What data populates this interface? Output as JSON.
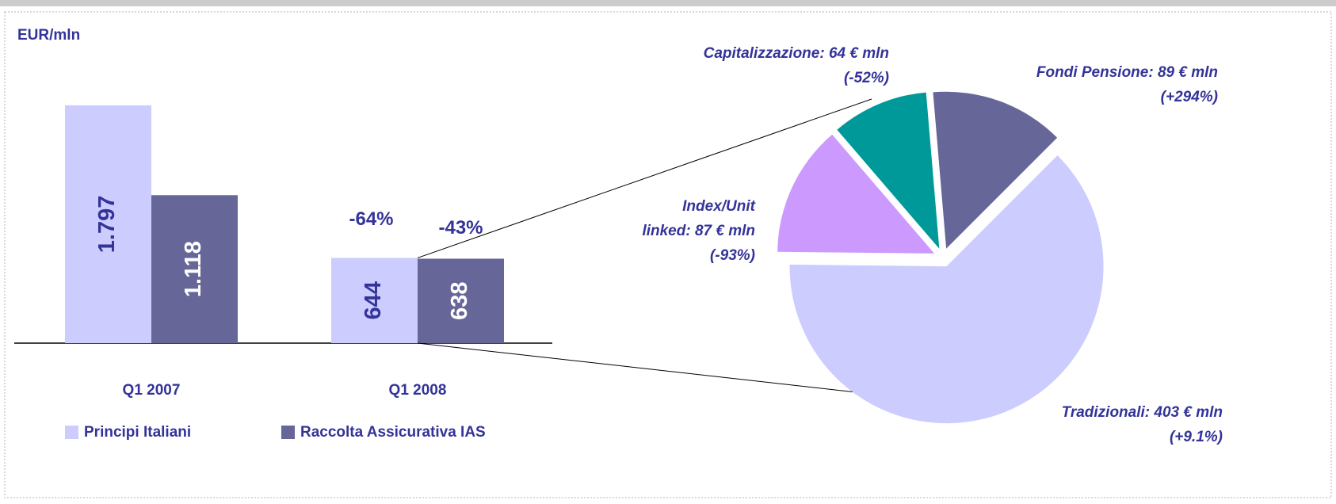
{
  "chart_data": [
    {
      "type": "bar",
      "unit_label": "EUR/mln",
      "categories": [
        "Q1 2007",
        "Q1 2008"
      ],
      "series": [
        {
          "name": "Principi Italiani",
          "color": "#ccccff",
          "label_color": "#333399",
          "values": [
            1797,
            644
          ],
          "value_labels": [
            "1.797",
            "644"
          ]
        },
        {
          "name": "Raccolta Assicurativa IAS",
          "color": "#666699",
          "label_color": "#ffffff",
          "values": [
            1118,
            638
          ],
          "value_labels": [
            "1.118",
            "638"
          ]
        }
      ],
      "annotations": [
        "-64%",
        "-43%"
      ],
      "ylim": [
        0,
        2000
      ]
    },
    {
      "type": "pie",
      "values": [
        403,
        87,
        64,
        89
      ],
      "value_labels": [
        "Tradizionali: 403 € mln",
        "Index/Unit\nlinked: 87 € mln",
        "Capitalizzazione: 64 € mln",
        "Fondi Pensione: 89 € mln"
      ],
      "changes": [
        "(+9.1%)",
        "(-93%)",
        "(-52%)",
        "(+294%)"
      ],
      "colors": [
        "#ccccff",
        "#cc99ff",
        "#009999",
        "#666699"
      ]
    }
  ]
}
